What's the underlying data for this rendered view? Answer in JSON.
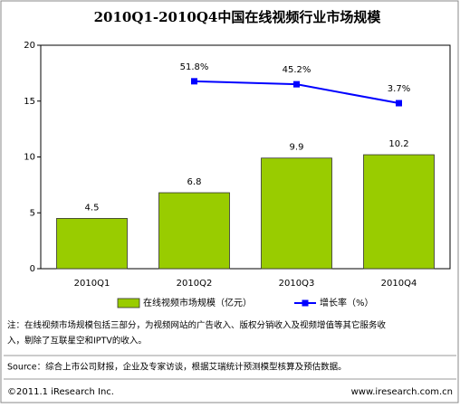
{
  "chart_data": {
    "type": "bar",
    "title": "2010Q1-2010Q4中国在线视频行业市场规模",
    "categories": [
      "2010Q1",
      "2010Q2",
      "2010Q3",
      "2010Q4"
    ],
    "series": [
      {
        "name": "在线视频市场规模（亿元）",
        "type": "bar",
        "color": "#99cc00",
        "values": [
          4.5,
          6.8,
          9.9,
          10.2
        ]
      },
      {
        "name": "增长率（%）",
        "type": "line",
        "axis": "y2",
        "color": "#0000ff",
        "values": [
          null,
          51.8,
          45.2,
          3.7
        ],
        "value_labels": [
          null,
          "51.8%",
          "45.2%",
          "3.7%"
        ]
      }
    ],
    "ylim": [
      0,
      20
    ],
    "yticks": [
      0,
      5,
      10,
      15,
      20
    ],
    "y2lim": [
      -360,
      131
    ],
    "legend": "bottom"
  },
  "note": [
    "注：在线视频市场规模包括三部分，为视频网站的广告收入、版权分销收入及视频增值等其它服务收",
    "入，剔除了互联星空和IPTV的收入。"
  ],
  "source": "Source：综合上市公司财报，企业及专家访谈，根据艾瑞统计预测模型核算及预估数据。",
  "copyright": "©2011.1 iResearch Inc.",
  "website": "www.iresearch.com.cn"
}
